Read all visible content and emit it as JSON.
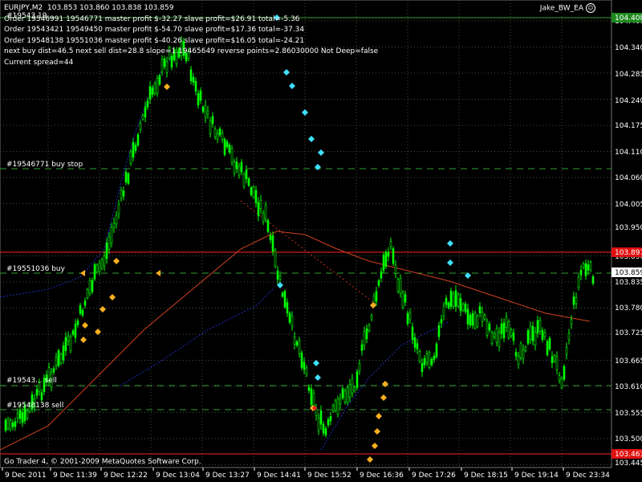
{
  "header": {
    "symbol": "EURJPY,M2",
    "ohlc": "103.853  103.860  103.838  103.859",
    "ea_name": "Jake_BW_EA",
    "ea_icon": "smiley-icon",
    "info_lines": [
      "Order 19546991  19546771 master profit $-32.27 slave profit=$26.91 total=-5.36",
      "Order 19543421  19549450 master profit $-54.70 slave profit=$17.36 total=-37.34",
      "Order 19548138  19551036 master profit $-40.26 slave profit=$16.05 total=-24.21",
      "next buy dist=46.5 next sell dist=28.8 slope=1.19465649 reverse points=2.86030000 Not Deep=false",
      "Current spread=44"
    ]
  },
  "footer": {
    "copyright": "Go Trader 4, © 2001-2009 MetaQuotes Software Corp."
  },
  "price_axis": {
    "labels": [
      "104.406",
      "104.340",
      "104.285",
      "104.240",
      "104.175",
      "104.110",
      "104.060",
      "104.005",
      "103.950",
      "103.890",
      "103.835",
      "103.780",
      "103.725",
      "103.665",
      "103.610",
      "103.555",
      "103.500",
      "103.445"
    ],
    "current_price": "103.859",
    "high_level": "104.408",
    "red_upper": "103.897",
    "red_lower": "103.463"
  },
  "time_axis": {
    "labels": [
      "9 Dec 2011",
      "9 Dec 11:39",
      "9 Dec 12:22",
      "9 Dec 13:04",
      "9 Dec 13:27",
      "9 Dec 14:41",
      "9 Dec 15:52",
      "9 Dec 16:36",
      "9 Dec 17:26",
      "9 Dec 18:15",
      "9 Dec 19:14",
      "9 Dec 23:34"
    ]
  },
  "order_labels": {
    "buy_stop": "#19546771 buy stop",
    "buy": "#19551036 buy",
    "sell_1": "#19543... sell",
    "sell_2": "#19548138 sell",
    "top": "#19543 19..."
  },
  "colors": {
    "background": "#000000",
    "candles": "#00ff00",
    "grid": "#2a4a2a",
    "red_line": "#ff2020",
    "ma_red": "#d04020",
    "ma_blue": "#2030c0",
    "arrow_cyan": "#40e0ff",
    "arrow_orange": "#ffb020"
  }
}
